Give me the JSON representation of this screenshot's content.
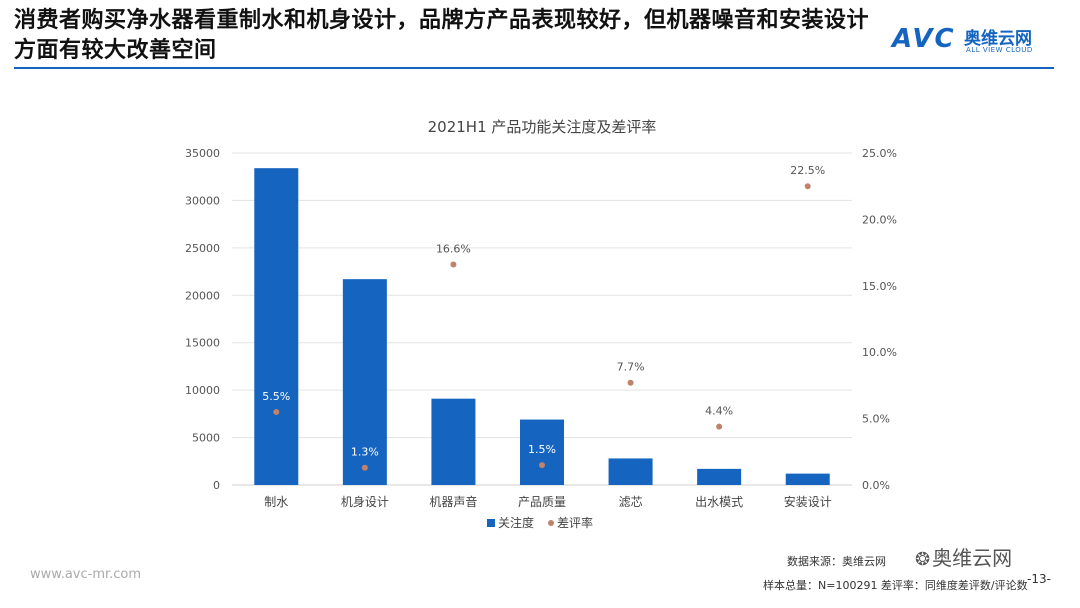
{
  "headline": "消费者购买净水器看重制水和机身设计，品牌方产品表现较好，但机器噪音和安装设计方面有较大改善空间",
  "logo": {
    "mark": "AVC",
    "name_cn": "奥维云网",
    "name_en": "ALL VIEW CLOUD"
  },
  "colors": {
    "accent": "#1565c0",
    "bar": "#1565c0",
    "point": "#c0826a"
  },
  "chart_data": {
    "type": "bar",
    "title": "2021H1  产品功能关注度及差评率",
    "categories": [
      "制水",
      "机身设计",
      "机器声音",
      "产品质量",
      "滤芯",
      "出水模式",
      "安装设计"
    ],
    "series": [
      {
        "name": "关注度",
        "type": "bar",
        "axis": "left",
        "values": [
          33400,
          21700,
          9100,
          6900,
          2800,
          1700,
          1200
        ]
      },
      {
        "name": "差评率",
        "type": "scatter",
        "axis": "right",
        "values": [
          5.5,
          1.3,
          16.6,
          1.5,
          7.7,
          4.4,
          22.5
        ],
        "labels": [
          "5.5%",
          "1.3%",
          "16.6%",
          "1.5%",
          "7.7%",
          "4.4%",
          "22.5%"
        ]
      }
    ],
    "y_left": {
      "lim": [
        0,
        35000
      ],
      "ticks": [
        "0",
        "5000",
        "10000",
        "15000",
        "20000",
        "25000",
        "30000",
        "35000"
      ]
    },
    "y_right": {
      "lim": [
        0,
        25
      ],
      "ticks": [
        "0.0%",
        "5.0%",
        "10.0%",
        "15.0%",
        "20.0%",
        "25.0%"
      ]
    },
    "grid": true,
    "legend_position": "bottom"
  },
  "footer": {
    "url": "www.avc-mr.com",
    "source": "数据来源：奥维云网",
    "sample": "样本总量：N=100291  差评率：同维度差评数/评论数",
    "page": "-13-",
    "wechat": "奥维云网"
  }
}
